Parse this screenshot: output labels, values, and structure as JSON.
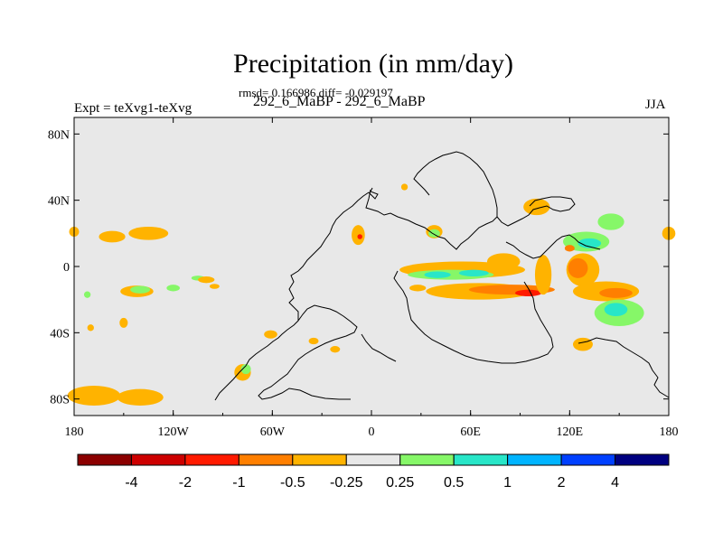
{
  "header": {
    "title": "Precipitation (in mm/day)",
    "stats": "rmsd= 0.166986 diff= -0.029197",
    "subtitle": "292_6_MaBP - 292_6_MaBP",
    "experiment": "Expt = teXvg1-teXvg",
    "season": "JJA"
  },
  "chart_data": {
    "type": "heatmap",
    "title": "Precipitation (in mm/day)",
    "subtitle": "292_6_MaBP - 292_6_MaBP",
    "variable": "Precipitation difference",
    "units": "mm/day",
    "season": "JJA",
    "rmsd": 0.166986,
    "diff": -0.029197,
    "x_range": [
      -180,
      180
    ],
    "y_range": [
      -90,
      90
    ],
    "x_ticks": [
      {
        "value": -180,
        "label": "180"
      },
      {
        "value": -120,
        "label": "120W"
      },
      {
        "value": -60,
        "label": "60W"
      },
      {
        "value": 0,
        "label": "0"
      },
      {
        "value": 60,
        "label": "60E"
      },
      {
        "value": 120,
        "label": "120E"
      },
      {
        "value": 180,
        "label": "180"
      }
    ],
    "y_ticks": [
      {
        "value": 80,
        "label": "80N"
      },
      {
        "value": 40,
        "label": "40N"
      },
      {
        "value": 0,
        "label": "0"
      },
      {
        "value": -40,
        "label": "40S"
      },
      {
        "value": -80,
        "label": "80S"
      }
    ],
    "colorbar": {
      "labels": [
        "-4",
        "-2",
        "-1",
        "-0.5",
        "-0.25",
        "0.25",
        "0.5",
        "1",
        "2",
        "4"
      ],
      "colors": [
        "#8B0000",
        "#CD0000",
        "#FF1A00",
        "#FF7F00",
        "#FFB300",
        "#E8E8E8",
        "#86F768",
        "#28E6C8",
        "#00B4FF",
        "#0040FF",
        "#000080"
      ]
    },
    "regions": [
      {
        "lon": -168,
        "lat": -78,
        "rx": 16,
        "ry": 6,
        "bin": "-0.25"
      },
      {
        "lon": -140,
        "lat": -79,
        "rx": 14,
        "ry": 5,
        "bin": "-0.25"
      },
      {
        "lon": -157,
        "lat": 18,
        "rx": 8,
        "ry": 3.5,
        "bin": "-0.25"
      },
      {
        "lon": -135,
        "lat": 20,
        "rx": 12,
        "ry": 4,
        "bin": "-0.25"
      },
      {
        "lon": -142,
        "lat": -15,
        "rx": 10,
        "ry": 3.5,
        "bin": "-0.25"
      },
      {
        "lon": -140,
        "lat": -14,
        "rx": 6,
        "ry": 2.3,
        "bin": "0.25"
      },
      {
        "lon": -120,
        "lat": -13,
        "rx": 4,
        "ry": 2,
        "bin": "0.25"
      },
      {
        "lon": -105,
        "lat": -7,
        "rx": 4,
        "ry": 1.5,
        "bin": "0.25"
      },
      {
        "lon": -100,
        "lat": -8,
        "rx": 5,
        "ry": 2,
        "bin": "-0.25"
      },
      {
        "lon": -180,
        "lat": 21,
        "rx": 3,
        "ry": 3,
        "bin": "-0.25"
      },
      {
        "lon": -172,
        "lat": -17,
        "rx": 2,
        "ry": 2,
        "bin": "0.25"
      },
      {
        "lon": -150,
        "lat": -34,
        "rx": 2.5,
        "ry": 3,
        "bin": "-0.25"
      },
      {
        "lon": -170,
        "lat": -37,
        "rx": 2,
        "ry": 2,
        "bin": "-0.25"
      },
      {
        "lon": -95,
        "lat": -12,
        "rx": 3,
        "ry": 1.5,
        "bin": "-0.25"
      },
      {
        "lon": -35,
        "lat": -45,
        "rx": 3,
        "ry": 2,
        "bin": "-0.25"
      },
      {
        "lon": -22,
        "lat": -50,
        "rx": 3,
        "ry": 2,
        "bin": "-0.25"
      },
      {
        "lon": -78,
        "lat": -64,
        "rx": 5,
        "ry": 5,
        "bin": "-0.25"
      },
      {
        "lon": -76,
        "lat": -62,
        "rx": 3,
        "ry": 3,
        "bin": "0.25"
      },
      {
        "lon": -61,
        "lat": -41,
        "rx": 4,
        "ry": 2.5,
        "bin": "-0.25"
      },
      {
        "lon": 38,
        "lat": 21,
        "rx": 5,
        "ry": 4,
        "bin": "-0.25"
      },
      {
        "lon": 38,
        "lat": 20,
        "rx": 3.5,
        "ry": 2.5,
        "bin": "0.25"
      },
      {
        "lon": -8,
        "lat": 19,
        "rx": 4,
        "ry": 6,
        "bin": "-0.25"
      },
      {
        "lon": -7,
        "lat": 18,
        "rx": 1.5,
        "ry": 1.5,
        "bin": "-1"
      },
      {
        "lon": 20,
        "lat": 48,
        "rx": 2,
        "ry": 2,
        "bin": "-0.25"
      },
      {
        "lon": 55,
        "lat": -2,
        "rx": 38,
        "ry": 5,
        "bin": "-0.25"
      },
      {
        "lon": 48,
        "lat": -5,
        "rx": 26,
        "ry": 3,
        "bin": "0.25"
      },
      {
        "lon": 40,
        "lat": -5,
        "rx": 8,
        "ry": 2,
        "bin": "0.5"
      },
      {
        "lon": 62,
        "lat": -4,
        "rx": 9,
        "ry": 2,
        "bin": "0.5"
      },
      {
        "lon": 80,
        "lat": 3,
        "rx": 10,
        "ry": 5,
        "bin": "-0.25"
      },
      {
        "lon": 65,
        "lat": -15,
        "rx": 32,
        "ry": 5,
        "bin": "-0.25"
      },
      {
        "lon": 85,
        "lat": -14,
        "rx": 26,
        "ry": 3,
        "bin": "-0.5"
      },
      {
        "lon": 95,
        "lat": -16,
        "rx": 8,
        "ry": 2,
        "bin": "-1"
      },
      {
        "lon": 28,
        "lat": -13,
        "rx": 5,
        "ry": 2,
        "bin": "-0.25"
      },
      {
        "lon": 128,
        "lat": -2,
        "rx": 10,
        "ry": 10,
        "bin": "-0.25"
      },
      {
        "lon": 125,
        "lat": -1,
        "rx": 6,
        "ry": 6,
        "bin": "-0.5"
      },
      {
        "lon": 142,
        "lat": -15,
        "rx": 20,
        "ry": 6,
        "bin": "-0.25"
      },
      {
        "lon": 148,
        "lat": -16,
        "rx": 10,
        "ry": 3,
        "bin": "-0.5"
      },
      {
        "lon": 150,
        "lat": -28,
        "rx": 15,
        "ry": 8,
        "bin": "0.25"
      },
      {
        "lon": 148,
        "lat": -26,
        "rx": 7,
        "ry": 4,
        "bin": "0.5"
      },
      {
        "lon": 130,
        "lat": 15,
        "rx": 14,
        "ry": 6,
        "bin": "0.25"
      },
      {
        "lon": 132,
        "lat": 14,
        "rx": 7,
        "ry": 3,
        "bin": "0.5"
      },
      {
        "lon": 145,
        "lat": 27,
        "rx": 8,
        "ry": 5,
        "bin": "0.25"
      },
      {
        "lon": 100,
        "lat": 36,
        "rx": 8,
        "ry": 5,
        "bin": "-0.25"
      },
      {
        "lon": 128,
        "lat": -47,
        "rx": 6,
        "ry": 4,
        "bin": "-0.25"
      },
      {
        "lon": 180,
        "lat": 20,
        "rx": 4,
        "ry": 4,
        "bin": "-0.25"
      },
      {
        "lon": 104,
        "lat": -5,
        "rx": 5,
        "ry": 12,
        "bin": "-0.25"
      },
      {
        "lon": 120,
        "lat": 11,
        "rx": 3,
        "ry": 2,
        "bin": "-0.5"
      }
    ]
  }
}
